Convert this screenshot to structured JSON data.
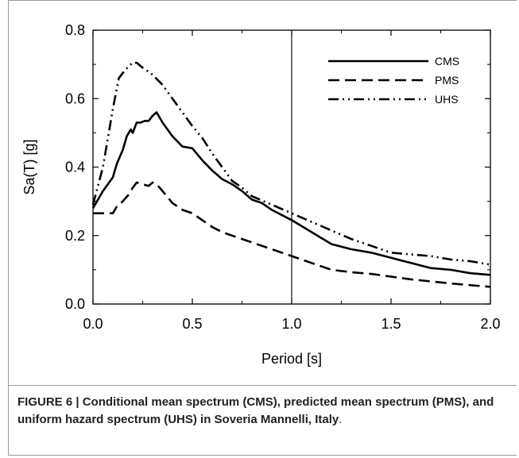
{
  "chart_data": {
    "type": "line",
    "title": "",
    "xlabel": "Period [s]",
    "ylabel": "Sa(T) [g]",
    "xlim": [
      0.0,
      2.0
    ],
    "ylim": [
      0.0,
      0.8
    ],
    "xticks": [
      "0.0",
      "0.5",
      "1.0",
      "1.5",
      "2.0"
    ],
    "yticks": [
      "0.0",
      "0.2",
      "0.4",
      "0.6",
      "0.8"
    ],
    "xtick_values": [
      0.0,
      0.5,
      1.0,
      1.5,
      2.0
    ],
    "ytick_values": [
      0.0,
      0.2,
      0.4,
      0.6,
      0.8
    ],
    "grid": false,
    "legend_position": "top-right",
    "reference_line_x": 1.0,
    "series": [
      {
        "name": "CMS",
        "style": "solid",
        "color": "#000000",
        "x": [
          0.0,
          0.05,
          0.1,
          0.12,
          0.15,
          0.17,
          0.19,
          0.2,
          0.22,
          0.24,
          0.26,
          0.28,
          0.3,
          0.32,
          0.35,
          0.4,
          0.45,
          0.5,
          0.55,
          0.6,
          0.65,
          0.7,
          0.75,
          0.8,
          0.85,
          0.9,
          0.95,
          1.0,
          1.1,
          1.2,
          1.3,
          1.4,
          1.5,
          1.6,
          1.7,
          1.8,
          1.9,
          2.0
        ],
        "y": [
          0.28,
          0.33,
          0.37,
          0.41,
          0.45,
          0.49,
          0.51,
          0.5,
          0.53,
          0.53,
          0.535,
          0.535,
          0.55,
          0.56,
          0.53,
          0.49,
          0.46,
          0.455,
          0.42,
          0.39,
          0.365,
          0.35,
          0.33,
          0.305,
          0.295,
          0.275,
          0.26,
          0.245,
          0.21,
          0.175,
          0.16,
          0.15,
          0.135,
          0.12,
          0.105,
          0.1,
          0.09,
          0.085
        ]
      },
      {
        "name": "PMS",
        "style": "dashed",
        "color": "#000000",
        "x": [
          0.0,
          0.05,
          0.1,
          0.12,
          0.15,
          0.18,
          0.2,
          0.22,
          0.25,
          0.28,
          0.3,
          0.32,
          0.35,
          0.4,
          0.45,
          0.5,
          0.55,
          0.6,
          0.65,
          0.7,
          0.8,
          0.9,
          1.0,
          1.1,
          1.2,
          1.3,
          1.4,
          1.5,
          1.6,
          1.7,
          1.8,
          1.9,
          2.0
        ],
        "y": [
          0.265,
          0.265,
          0.265,
          0.285,
          0.3,
          0.32,
          0.34,
          0.355,
          0.35,
          0.345,
          0.355,
          0.35,
          0.33,
          0.295,
          0.275,
          0.265,
          0.245,
          0.225,
          0.21,
          0.2,
          0.18,
          0.16,
          0.14,
          0.12,
          0.1,
          0.093,
          0.088,
          0.08,
          0.072,
          0.066,
          0.06,
          0.055,
          0.05
        ]
      },
      {
        "name": "UHS",
        "style": "dash-dot-dot",
        "color": "#000000",
        "x": [
          0.0,
          0.05,
          0.1,
          0.13,
          0.15,
          0.18,
          0.2,
          0.22,
          0.25,
          0.3,
          0.35,
          0.4,
          0.45,
          0.5,
          0.55,
          0.6,
          0.65,
          0.7,
          0.75,
          0.8,
          0.9,
          1.0,
          1.1,
          1.2,
          1.3,
          1.4,
          1.5,
          1.6,
          1.7,
          1.8,
          1.9,
          2.0
        ],
        "y": [
          0.29,
          0.4,
          0.57,
          0.66,
          0.675,
          0.695,
          0.705,
          0.705,
          0.69,
          0.67,
          0.64,
          0.6,
          0.56,
          0.52,
          0.485,
          0.44,
          0.4,
          0.36,
          0.34,
          0.315,
          0.29,
          0.265,
          0.24,
          0.215,
          0.19,
          0.17,
          0.15,
          0.145,
          0.14,
          0.13,
          0.125,
          0.115
        ]
      }
    ]
  },
  "caption": {
    "bold": "FIGURE 6 | Conditional mean spectrum (CMS), predicted mean spectrum (PMS), and uniform hazard spectrum (UHS) in Soveria Mannelli, Italy",
    "tail": "."
  }
}
